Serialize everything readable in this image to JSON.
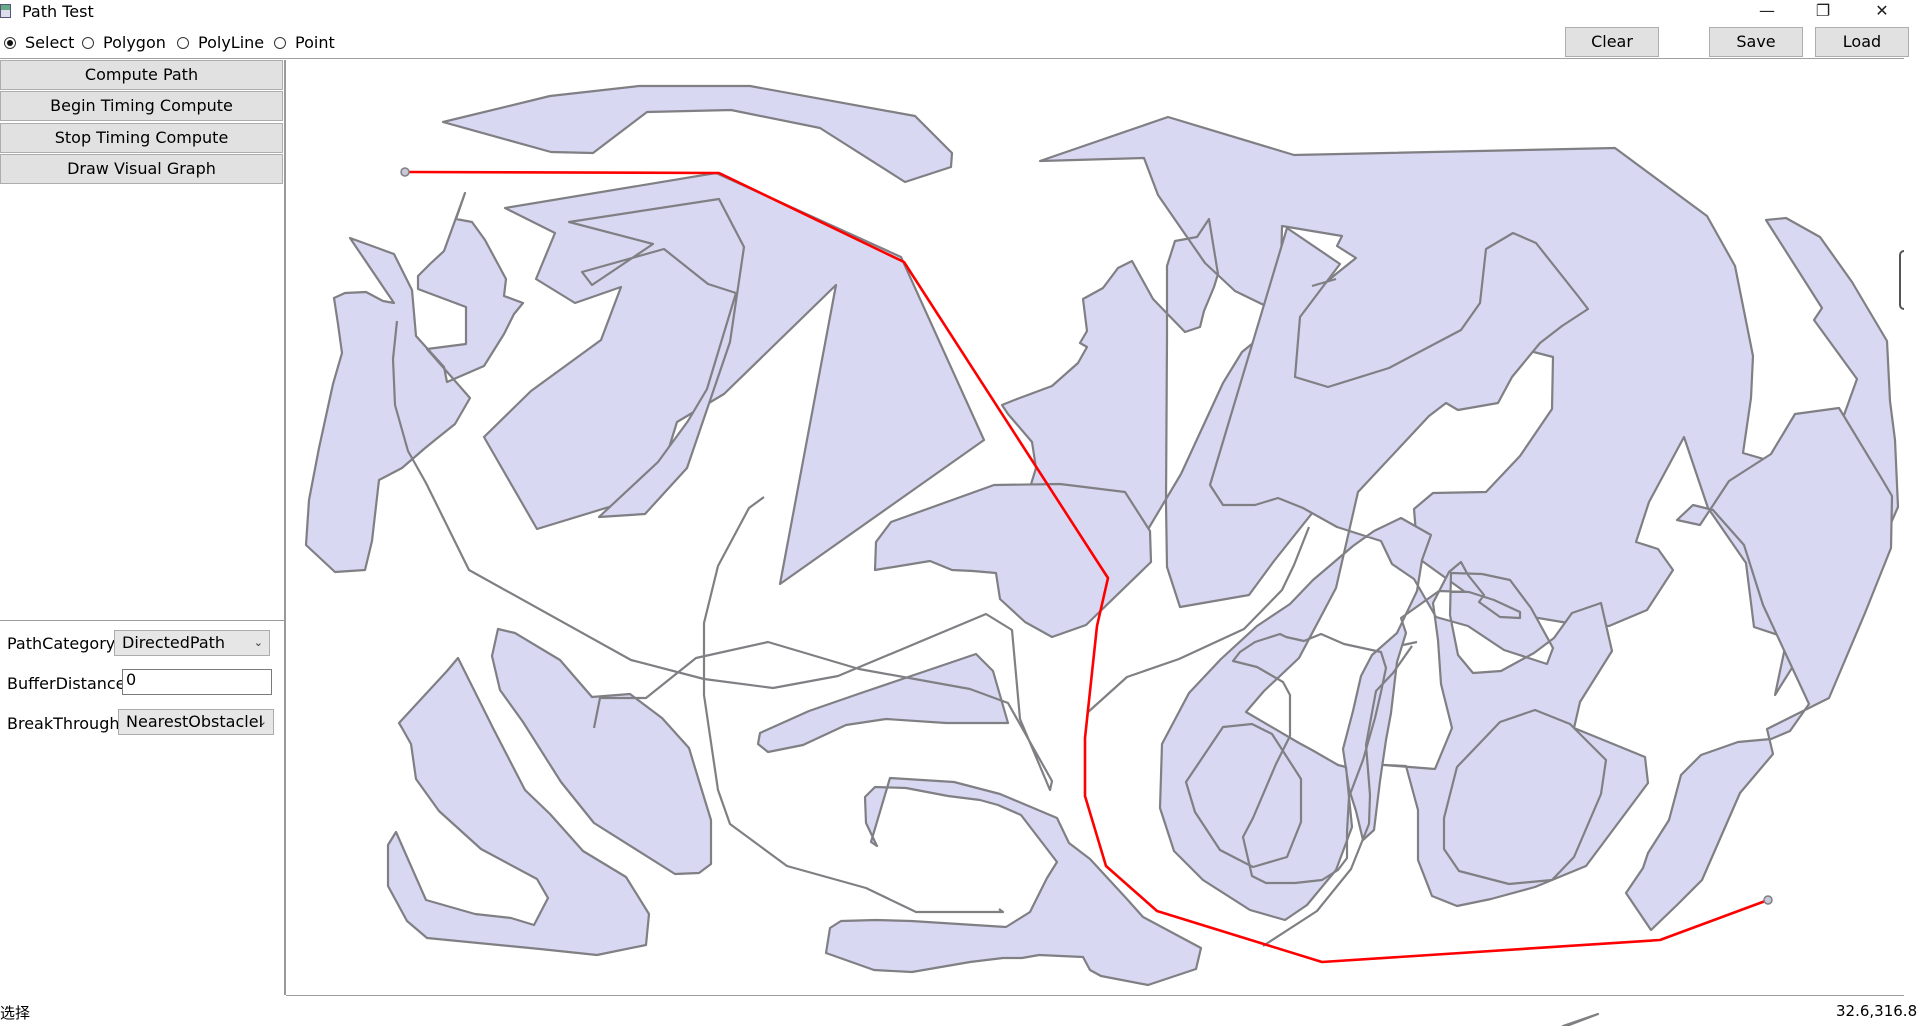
{
  "window": {
    "title": "Path Test"
  },
  "toolbar": {
    "modes": [
      {
        "label": "Select",
        "selected": true
      },
      {
        "label": "Polygon",
        "selected": false
      },
      {
        "label": "PolyLine",
        "selected": false
      },
      {
        "label": "Point",
        "selected": false
      }
    ],
    "clear_label": "Clear",
    "save_label": "Save",
    "load_label": "Load"
  },
  "left_panel": {
    "buttons": [
      "Compute Path",
      "Begin Timing Compute",
      "Stop Timing Compute",
      "Draw Visual Graph"
    ],
    "path_category": {
      "label": "PathCategory:",
      "value": "DirectedPath"
    },
    "buffer_distance": {
      "label": "BufferDistance:",
      "value": "0"
    },
    "break_through": {
      "label": "BreakThrough:",
      "value": "NearestObstacleI"
    }
  },
  "status": {
    "mode": "选择",
    "coords": "32.6,316.8"
  },
  "colors": {
    "obstacle_fill": "#d8d8f2",
    "obstacle_stroke": "#7f7f84",
    "path": "#ff0000",
    "point": "#c8c8d8"
  }
}
